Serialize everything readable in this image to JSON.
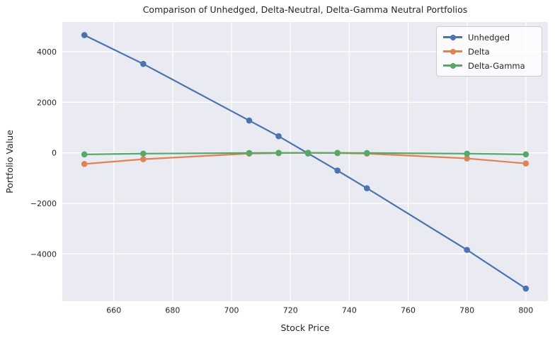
{
  "chart_data": {
    "type": "line",
    "title": "Comparison of Unhedged, Delta-Neutral, Delta-Gamma Neutral Portfolios",
    "xlabel": "Stock Price",
    "ylabel": "Portfolio Value",
    "xlim": [
      642.5,
      807.5
    ],
    "ylim": [
      -5870,
      5180
    ],
    "xticks": [
      660,
      680,
      700,
      720,
      740,
      760,
      780,
      800
    ],
    "yticks": [
      4000,
      2000,
      0,
      -2000,
      -4000
    ],
    "ytick_labels": [
      "4000",
      "2000",
      "0",
      "−2000",
      "−4000"
    ],
    "grid": true,
    "legend_position": "upper right",
    "x": [
      650,
      670,
      706,
      716,
      726,
      736,
      746,
      780,
      800
    ],
    "series": [
      {
        "name": "Unhedged",
        "color": "#4C72B0",
        "values": [
          4660,
          3520,
          1280,
          660,
          -20,
          -700,
          -1400,
          -3840,
          -5370
        ]
      },
      {
        "name": "Delta",
        "color": "#DD8452",
        "values": [
          -440,
          -250,
          -30,
          -10,
          0,
          -10,
          -30,
          -220,
          -420
        ]
      },
      {
        "name": "Delta-Gamma",
        "color": "#55A868",
        "values": [
          -60,
          -30,
          -5,
          0,
          0,
          0,
          -5,
          -30,
          -60
        ]
      }
    ],
    "colors": {
      "figure_bg": "#FFFFFF",
      "plot_bg": "#EAEAF2",
      "grid": "#FFFFFF",
      "text": "#262626",
      "legend_border": "#CCCCCC"
    }
  }
}
